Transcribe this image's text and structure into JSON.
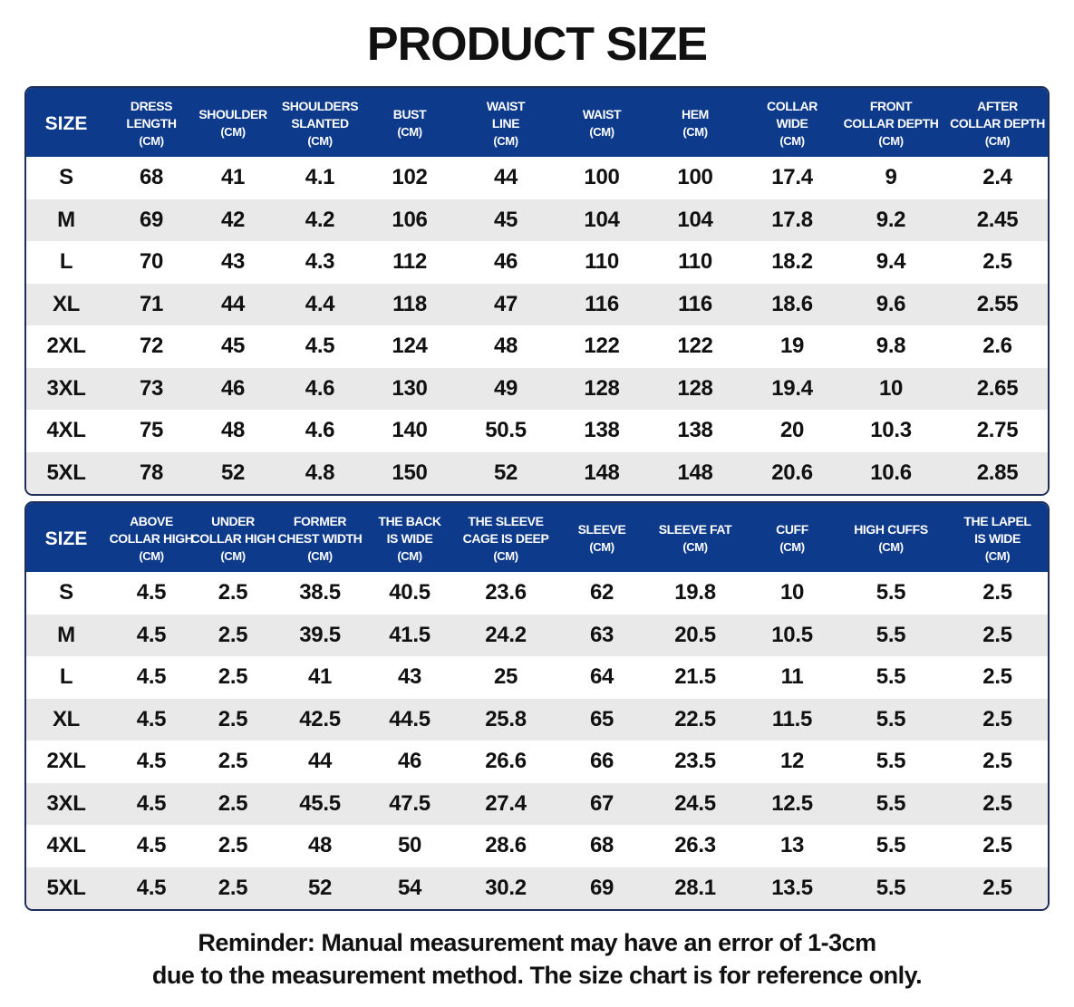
{
  "title": "PRODUCT SIZE",
  "colors": {
    "header_bg": "#0d3a8a",
    "alt_row": "#e9e9e9",
    "border": "#1f2f5a"
  },
  "table1": {
    "headers": [
      {
        "l1": "SIZE",
        "l2": "",
        "unit": ""
      },
      {
        "l1": "DRESS",
        "l2": "LENGTH",
        "unit": "(CM)"
      },
      {
        "l1": "",
        "l2": "SHOULDER",
        "unit": "(CM)"
      },
      {
        "l1": "SHOULDERS",
        "l2": "SLANTED",
        "unit": "(CM)"
      },
      {
        "l1": "",
        "l2": "BUST",
        "unit": "(CM)"
      },
      {
        "l1": "WAIST",
        "l2": "LINE",
        "unit": "(CM)"
      },
      {
        "l1": "",
        "l2": "WAIST",
        "unit": "(CM)"
      },
      {
        "l1": "",
        "l2": "HEM",
        "unit": "(CM)"
      },
      {
        "l1": "COLLAR",
        "l2": "WIDE",
        "unit": "(CM)"
      },
      {
        "l1": "FRONT",
        "l2": "COLLAR DEPTH",
        "unit": "(CM)"
      },
      {
        "l1": "AFTER",
        "l2": "COLLAR DEPTH",
        "unit": "(CM)"
      }
    ],
    "rows": [
      [
        "S",
        "68",
        "41",
        "4.1",
        "102",
        "44",
        "100",
        "100",
        "17.4",
        "9",
        "2.4"
      ],
      [
        "M",
        "69",
        "42",
        "4.2",
        "106",
        "45",
        "104",
        "104",
        "17.8",
        "9.2",
        "2.45"
      ],
      [
        "L",
        "70",
        "43",
        "4.3",
        "112",
        "46",
        "110",
        "110",
        "18.2",
        "9.4",
        "2.5"
      ],
      [
        "XL",
        "71",
        "44",
        "4.4",
        "118",
        "47",
        "116",
        "116",
        "18.6",
        "9.6",
        "2.55"
      ],
      [
        "2XL",
        "72",
        "45",
        "4.5",
        "124",
        "48",
        "122",
        "122",
        "19",
        "9.8",
        "2.6"
      ],
      [
        "3XL",
        "73",
        "46",
        "4.6",
        "130",
        "49",
        "128",
        "128",
        "19.4",
        "10",
        "2.65"
      ],
      [
        "4XL",
        "75",
        "48",
        "4.6",
        "140",
        "50.5",
        "138",
        "138",
        "20",
        "10.3",
        "2.75"
      ],
      [
        "5XL",
        "78",
        "52",
        "4.8",
        "150",
        "52",
        "148",
        "148",
        "20.6",
        "10.6",
        "2.85"
      ]
    ]
  },
  "table2": {
    "headers": [
      {
        "l1": "SIZE",
        "l2": "",
        "unit": ""
      },
      {
        "l1": "ABOVE",
        "l2": "COLLAR HIGH",
        "unit": "(CM)"
      },
      {
        "l1": "UNDER",
        "l2": "COLLAR HIGH",
        "unit": "(CM)"
      },
      {
        "l1": "FORMER",
        "l2": "CHEST WIDTH",
        "unit": "(CM)"
      },
      {
        "l1": "THE BACK",
        "l2": "IS WIDE",
        "unit": "(CM)"
      },
      {
        "l1": "THE SLEEVE",
        "l2": "CAGE IS DEEP",
        "unit": "(CM)"
      },
      {
        "l1": "",
        "l2": "SLEEVE",
        "unit": "(CM)"
      },
      {
        "l1": "",
        "l2": "SLEEVE FAT",
        "unit": "(CM)"
      },
      {
        "l1": "",
        "l2": "CUFF",
        "unit": "(CM)"
      },
      {
        "l1": "",
        "l2": "HIGH CUFFS",
        "unit": "(CM)"
      },
      {
        "l1": "THE LAPEL",
        "l2": "IS WIDE",
        "unit": "(CM)"
      }
    ],
    "rows": [
      [
        "S",
        "4.5",
        "2.5",
        "38.5",
        "40.5",
        "23.6",
        "62",
        "19.8",
        "10",
        "5.5",
        "2.5"
      ],
      [
        "M",
        "4.5",
        "2.5",
        "39.5",
        "41.5",
        "24.2",
        "63",
        "20.5",
        "10.5",
        "5.5",
        "2.5"
      ],
      [
        "L",
        "4.5",
        "2.5",
        "41",
        "43",
        "25",
        "64",
        "21.5",
        "11",
        "5.5",
        "2.5"
      ],
      [
        "XL",
        "4.5",
        "2.5",
        "42.5",
        "44.5",
        "25.8",
        "65",
        "22.5",
        "11.5",
        "5.5",
        "2.5"
      ],
      [
        "2XL",
        "4.5",
        "2.5",
        "44",
        "46",
        "26.6",
        "66",
        "23.5",
        "12",
        "5.5",
        "2.5"
      ],
      [
        "3XL",
        "4.5",
        "2.5",
        "45.5",
        "47.5",
        "27.4",
        "67",
        "24.5",
        "12.5",
        "5.5",
        "2.5"
      ],
      [
        "4XL",
        "4.5",
        "2.5",
        "48",
        "50",
        "28.6",
        "68",
        "26.3",
        "13",
        "5.5",
        "2.5"
      ],
      [
        "5XL",
        "4.5",
        "2.5",
        "52",
        "54",
        "30.2",
        "69",
        "28.1",
        "13.5",
        "5.5",
        "2.5"
      ]
    ]
  },
  "reminder": {
    "line1": "Reminder: Manual measurement may have an error of 1-3cm",
    "line2": "due to the measurement method. The size chart is for reference only."
  }
}
